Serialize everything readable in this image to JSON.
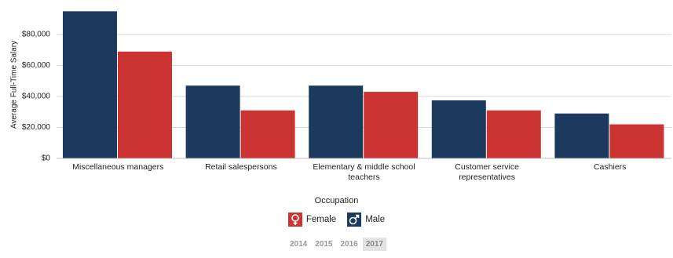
{
  "chart_data": {
    "type": "bar",
    "categories": [
      "Miscellaneous managers",
      "Retail salespersons",
      "Elementary & middle school teachers",
      "Customer service representatives",
      "Cashiers"
    ],
    "series": [
      {
        "name": "Male",
        "color": "#1b3a5e",
        "values": [
          95000,
          47000,
          47000,
          37500,
          29000
        ]
      },
      {
        "name": "Female",
        "color": "#cc3333",
        "values": [
          69000,
          31000,
          43000,
          31000,
          22000
        ]
      }
    ],
    "xlabel": "Occupation",
    "ylabel": "Average Full-Time Salary",
    "ylim": [
      0,
      95000
    ],
    "yticks": [
      {
        "value": 0,
        "label": "$0"
      },
      {
        "value": 20000,
        "label": "$20,000"
      },
      {
        "value": 40000,
        "label": "$40,000"
      },
      {
        "value": 60000,
        "label": "$60,000"
      },
      {
        "value": 80000,
        "label": "$80,000"
      }
    ],
    "grid": true,
    "years": [
      2014,
      2015,
      2016,
      2017
    ],
    "selected_year": 2017
  }
}
